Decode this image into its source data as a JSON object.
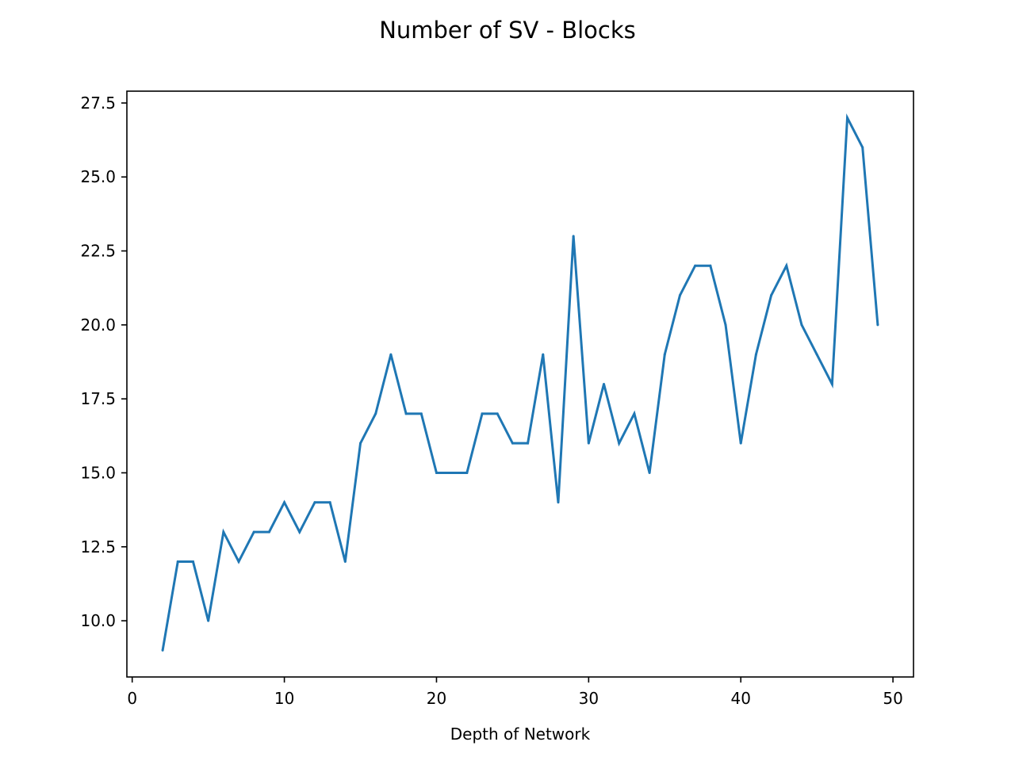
{
  "chart_data": {
    "type": "line",
    "title": "Number of SV - Blocks",
    "xlabel": "Depth of Network",
    "ylabel": "",
    "xlim": [
      -0.35,
      51.35
    ],
    "ylim": [
      8.1,
      27.9
    ],
    "xticks": [
      0,
      10,
      20,
      30,
      40,
      50
    ],
    "xtick_labels": [
      "0",
      "10",
      "20",
      "30",
      "40",
      "50"
    ],
    "yticks": [
      10.0,
      12.5,
      15.0,
      17.5,
      20.0,
      22.5,
      25.0,
      27.5
    ],
    "ytick_labels": [
      "10.0",
      "12.5",
      "15.0",
      "17.5",
      "20.0",
      "22.5",
      "25.0",
      "27.5"
    ],
    "grid": false,
    "legend": "none",
    "series": [
      {
        "color": "#1f77b4",
        "x": [
          2,
          3,
          4,
          5,
          6,
          7,
          8,
          9,
          10,
          11,
          12,
          13,
          14,
          15,
          16,
          17,
          18,
          19,
          20,
          21,
          22,
          23,
          24,
          25,
          26,
          27,
          28,
          29,
          30,
          31,
          32,
          33,
          34,
          35,
          36,
          37,
          38,
          39,
          40,
          41,
          42,
          43,
          44,
          45,
          46,
          47,
          48,
          49
        ],
        "values": [
          9,
          12,
          12,
          10,
          13,
          12,
          13,
          13,
          14,
          13,
          14,
          14,
          12,
          16,
          17,
          19,
          17,
          17,
          15,
          15,
          15,
          17,
          17,
          16,
          16,
          19,
          14,
          23,
          16,
          18,
          16,
          17,
          15,
          19,
          21,
          22,
          22,
          20,
          16,
          19,
          21,
          22,
          20,
          19,
          18,
          27,
          26,
          20
        ]
      }
    ]
  }
}
